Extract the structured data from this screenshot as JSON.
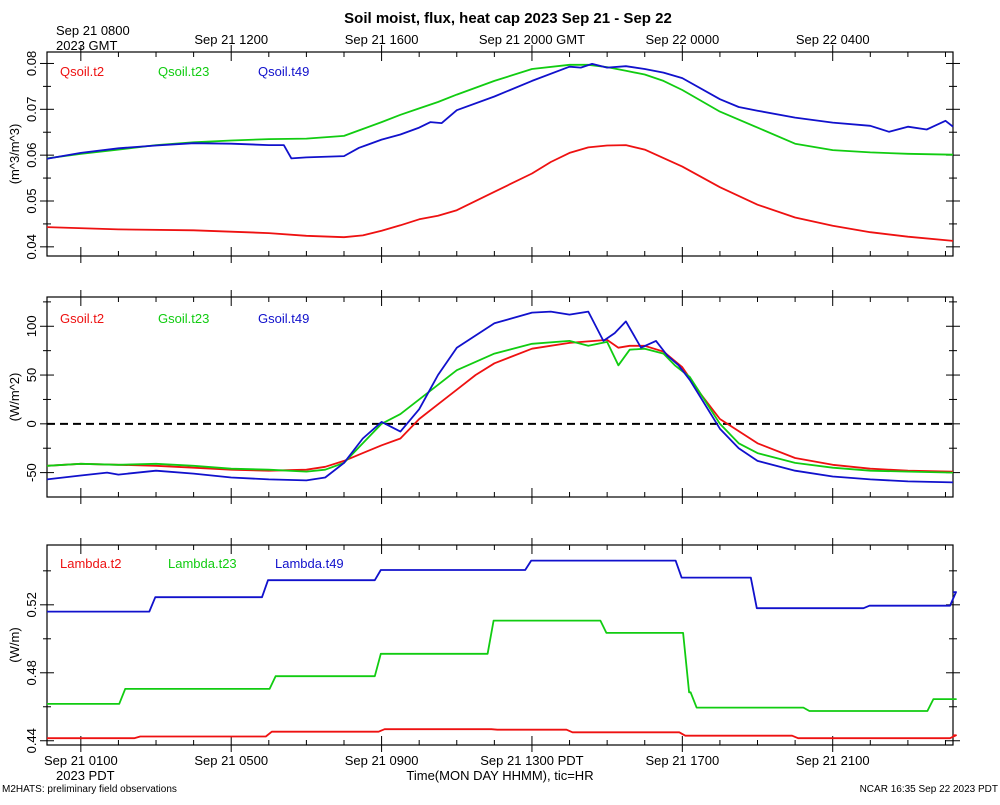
{
  "title": "Soil moist, flux, heat cap 2023 Sep 21 - Sep 22",
  "top_axis": {
    "first_label": "Sep 21 0800",
    "first_sublabel": "2023 GMT",
    "labels": [
      "Sep 21 1200",
      "Sep 21 1600",
      "Sep 21 2000 GMT",
      "Sep 22 0000",
      "Sep 22 0400"
    ]
  },
  "bottom_axis": {
    "labels": [
      "Sep 21 0100",
      "Sep 21 0500",
      "Sep 21 0900",
      "Sep 21 1300 PDT",
      "Sep 21 1700",
      "Sep 21 2100"
    ],
    "first_sublabel": "2023 PDT",
    "title": "Time(MON DAY HHMM), tic=HR"
  },
  "footer": {
    "left": "M2HATS: preliminary field observations",
    "right": "NCAR 16:35 Sep 22 2023 PDT"
  },
  "colors": {
    "red": "#ee1111",
    "green": "#11cc11",
    "blue": "#1111cc"
  },
  "chart_data": [
    {
      "type": "line",
      "name": "soil-moisture",
      "ylabel": "(m^3/m^3)",
      "ylim": [
        0.038,
        0.0825
      ],
      "xlim": [
        -0.9,
        23.2
      ],
      "yticks": [
        0.04,
        0.05,
        0.06,
        0.07,
        0.08
      ],
      "ytick_labels": [
        "0.04",
        "0.05",
        "0.06",
        "0.07",
        "0.08"
      ],
      "series": [
        {
          "name": "Qsoil.t2",
          "color": "red",
          "label": "Qsoil.t2",
          "x": [
            -0.9,
            1,
            3,
            5,
            6,
            7,
            7.5,
            8,
            8.5,
            9,
            9.5,
            10,
            11,
            12,
            12.5,
            13,
            13.5,
            14,
            14.5,
            15,
            16,
            17,
            18,
            19,
            20,
            21,
            22,
            23.2
          ],
          "y": [
            0.0443,
            0.0438,
            0.0436,
            0.043,
            0.0424,
            0.0421,
            0.0425,
            0.0435,
            0.0447,
            0.046,
            0.0468,
            0.048,
            0.052,
            0.056,
            0.0585,
            0.0605,
            0.0617,
            0.0621,
            0.0622,
            0.0612,
            0.0575,
            0.053,
            0.0492,
            0.0464,
            0.0446,
            0.0432,
            0.0422,
            0.0413
          ]
        },
        {
          "name": "Qsoil.t23",
          "color": "green",
          "label": "Qsoil.t23",
          "x": [
            -0.9,
            0,
            1,
            2,
            3,
            4,
            5,
            6,
            7,
            7.5,
            8,
            8.5,
            9,
            9.5,
            10,
            11,
            12,
            13,
            13.5,
            14,
            14.5,
            15,
            15.5,
            16,
            17,
            18,
            19,
            20,
            21,
            22,
            23.2
          ],
          "y": [
            0.0593,
            0.0603,
            0.0612,
            0.0622,
            0.0628,
            0.0632,
            0.0635,
            0.0636,
            0.0642,
            0.0657,
            0.0672,
            0.0688,
            0.0702,
            0.0716,
            0.0732,
            0.0762,
            0.0788,
            0.0797,
            0.0797,
            0.0792,
            0.0784,
            0.0776,
            0.0762,
            0.0742,
            0.0695,
            0.066,
            0.0625,
            0.0611,
            0.0606,
            0.0603,
            0.0601
          ]
        },
        {
          "name": "Qsoil.t49",
          "color": "blue",
          "label": "Qsoil.t49",
          "x": [
            -0.9,
            0,
            1,
            2,
            3,
            4,
            5,
            5.4,
            5.6,
            6,
            7,
            7.4,
            7.6,
            8,
            8.5,
            9,
            9.3,
            9.6,
            10,
            11,
            12,
            13,
            13.3,
            13.6,
            14,
            14.5,
            15,
            15.5,
            16,
            17,
            17.5,
            18,
            19,
            20,
            21,
            21.5,
            22,
            22.5,
            23,
            23.2
          ],
          "y": [
            0.0592,
            0.0605,
            0.0615,
            0.0621,
            0.0626,
            0.0625,
            0.0622,
            0.0622,
            0.0593,
            0.0595,
            0.0598,
            0.0616,
            0.0622,
            0.0634,
            0.0645,
            0.066,
            0.0672,
            0.067,
            0.0698,
            0.0728,
            0.0762,
            0.0793,
            0.0791,
            0.0799,
            0.0791,
            0.0794,
            0.0788,
            0.078,
            0.0768,
            0.0722,
            0.0705,
            0.0697,
            0.0682,
            0.0671,
            0.0664,
            0.0651,
            0.0662,
            0.0656,
            0.0675,
            0.0662
          ]
        }
      ]
    },
    {
      "type": "line",
      "name": "soil-heat-flux",
      "ylabel": "(W/m^2)",
      "ylim": [
        -75,
        130
      ],
      "xlim": [
        -0.9,
        23.2
      ],
      "yticks": [
        -50,
        0,
        50,
        100
      ],
      "ytick_labels": [
        "-50",
        "0",
        "50",
        "100"
      ],
      "zero_line": 0,
      "series": [
        {
          "name": "Gsoil.t2",
          "color": "red",
          "label": "Gsoil.t2",
          "x": [
            -0.9,
            0,
            1,
            2,
            3,
            4,
            5,
            6,
            6.5,
            7,
            7.5,
            8,
            8.5,
            9,
            9.5,
            10,
            10.5,
            11,
            12,
            13,
            14,
            14.3,
            14.6,
            15,
            15.5,
            16,
            16.5,
            17,
            18,
            19,
            20,
            21,
            22,
            23.2
          ],
          "y": [
            -43,
            -41,
            -42,
            -43,
            -45,
            -47,
            -48,
            -47,
            -44,
            -38,
            -30,
            -22,
            -15,
            5,
            20,
            35,
            50,
            62,
            77,
            83,
            86,
            78,
            80,
            80,
            74,
            58,
            30,
            5,
            -20,
            -35,
            -42,
            -46,
            -48,
            -49
          ]
        },
        {
          "name": "Gsoil.t23",
          "color": "green",
          "label": "Gsoil.t23",
          "x": [
            -0.9,
            0,
            1,
            2,
            3,
            4,
            5,
            6,
            6.5,
            7,
            7.5,
            8,
            8.5,
            9,
            9.5,
            10,
            11,
            12,
            13,
            13.5,
            14,
            14.3,
            14.6,
            15,
            15.5,
            15.8,
            16.2,
            17,
            17.5,
            18,
            19,
            20,
            21,
            22,
            23.2
          ],
          "y": [
            -43,
            -41,
            -42,
            -41,
            -43,
            -46,
            -47,
            -49,
            -47,
            -40,
            -20,
            0,
            10,
            25,
            40,
            55,
            72,
            82,
            85,
            80,
            84,
            60,
            76,
            77,
            72,
            60,
            48,
            0,
            -20,
            -30,
            -40,
            -45,
            -48,
            -49,
            -50
          ]
        },
        {
          "name": "Gsoil.t49",
          "color": "blue",
          "label": "Gsoil.t49",
          "x": [
            -0.9,
            0,
            0.7,
            1,
            2,
            3,
            4,
            5,
            6,
            6.5,
            7,
            7.5,
            8,
            8.5,
            9,
            9.5,
            10,
            11,
            12,
            12.5,
            13,
            13.5,
            13.9,
            14.2,
            14.5,
            14.9,
            15.3,
            15.6,
            15.9,
            16.2,
            17,
            17.5,
            18,
            19,
            20,
            21,
            22,
            23.2
          ],
          "y": [
            -57,
            -53,
            -50,
            -52,
            -48,
            -51,
            -55,
            -57,
            -58,
            -55,
            -40,
            -15,
            2,
            -8,
            15,
            50,
            78,
            103,
            114,
            115,
            112,
            115,
            85,
            93,
            105,
            78,
            85,
            70,
            60,
            45,
            -5,
            -25,
            -38,
            -48,
            -54,
            -57,
            -59,
            -60
          ]
        }
      ]
    },
    {
      "type": "line",
      "name": "thermal-conductivity",
      "ylabel": "(W/m)",
      "ylim": [
        0.4375,
        0.5552
      ],
      "xlim": [
        -0.9,
        23.2
      ],
      "yticks": [
        0.44,
        0.48,
        0.52
      ],
      "ytick_labels": [
        "0.44",
        "0.48",
        "0.52"
      ],
      "step": true,
      "series": [
        {
          "name": "Lambda.t2",
          "color": "red",
          "label": "Lambda.t2",
          "x": [
            -0.9,
            1.5,
            5,
            8,
            11,
            13,
            16,
            19,
            23.2
          ],
          "y": [
            0.4415,
            0.4425,
            0.4453,
            0.4468,
            0.4465,
            0.445,
            0.443,
            0.4415,
            0.4432
          ]
        },
        {
          "name": "Lambda.t23",
          "color": "green",
          "label": "Lambda.t23",
          "x": [
            -0.9,
            1.1,
            5.1,
            7.9,
            10.9,
            13.9,
            16.1,
            16.3,
            19.3,
            21.2,
            22.6,
            23.2
          ],
          "y": [
            0.4617,
            0.4705,
            0.478,
            0.4912,
            0.5107,
            0.5035,
            0.4685,
            0.4595,
            0.4575,
            0.4575,
            0.4645,
            0.4645
          ]
        },
        {
          "name": "Lambda.t49",
          "color": "blue",
          "label": "Lambda.t49",
          "x": [
            -0.9,
            1.9,
            4.9,
            7.9,
            11.9,
            15.9,
            17.9,
            20.9,
            22.9,
            23.2
          ],
          "y": [
            0.516,
            0.5245,
            0.5345,
            0.5405,
            0.546,
            0.536,
            0.518,
            0.5195,
            0.5195,
            0.5275
          ]
        }
      ]
    }
  ]
}
